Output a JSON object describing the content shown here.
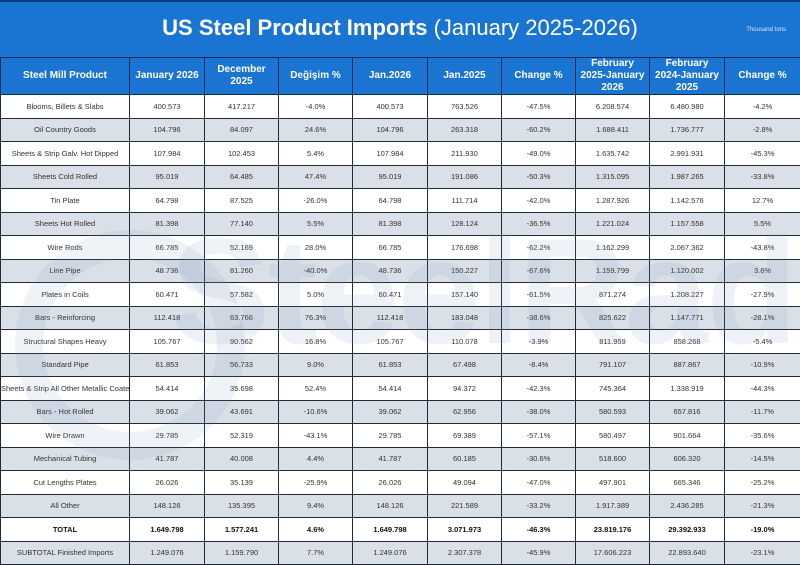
{
  "title": {
    "bold": "US Steel Product Imports",
    "rest": " (January 2025-2026)"
  },
  "unit": "Thousand tons",
  "watermark": "SteelRadar",
  "colors": {
    "header": "#1a74d2",
    "alt_row": "#d0d8e2"
  },
  "columns": [
    "Steel Mill Product",
    "January 2026",
    "December 2025",
    "Değişim %",
    "Jan.2026",
    "Jan.2025",
    "Change %",
    "February 2025-January 2026",
    "February 2024-January 2025",
    "Change %"
  ],
  "rows": [
    [
      "Blooms, Billets & Slabs",
      "400.573",
      "417.217",
      "-4.0%",
      "400.573",
      "763.526",
      "-47.5%",
      "6.208.574",
      "6.480.980",
      "-4.2%"
    ],
    [
      "Oil Country Goods",
      "104.796",
      "84.097",
      "24.6%",
      "104.796",
      "263.318",
      "-60.2%",
      "1.688.411",
      "1.736.777",
      "-2.8%"
    ],
    [
      "Sheets & Strip Galv. Hot Dipped",
      "107.984",
      "102.453",
      "5.4%",
      "107.984",
      "211.930",
      "-49.0%",
      "1.635.742",
      "2.991.931",
      "-45.3%"
    ],
    [
      "Sheets Cold Rolled",
      "95.019",
      "64.485",
      "47.4%",
      "95.019",
      "191.086",
      "-50.3%",
      "1.315.095",
      "1.987.265",
      "-33.8%"
    ],
    [
      "Tin Plate",
      "64.798",
      "87.525",
      "-26.0%",
      "64.798",
      "111.714",
      "-42.0%",
      "1.287.926",
      "1.142.576",
      "12.7%"
    ],
    [
      "Sheets Hot Rolled",
      "81.398",
      "77.140",
      "5.5%",
      "81.398",
      "128.124",
      "-36.5%",
      "1.221.024",
      "1.157.558",
      "5.5%"
    ],
    [
      "Wire Rods",
      "66.785",
      "52.169",
      "28.0%",
      "66.785",
      "176.698",
      "-62.2%",
      "1.162.299",
      "2.067.362",
      "-43.8%"
    ],
    [
      "Line Pipe",
      "48.736",
      "81.260",
      "-40.0%",
      "48.736",
      "150.227",
      "-67.6%",
      "1.159.799",
      "1.120.002",
      "3.6%"
    ],
    [
      "Plates in Coils",
      "60.471",
      "57.582",
      "5.0%",
      "60.471",
      "157.140",
      "-61.5%",
      "871.274",
      "1.208.227",
      "-27.9%"
    ],
    [
      "Bars - Reinforcing",
      "112.418",
      "63.766",
      "76.3%",
      "112.418",
      "183.048",
      "-38.6%",
      "825.622",
      "1.147.771",
      "-28.1%"
    ],
    [
      "Structural Shapes Heavy",
      "105.767",
      "90.562",
      "16.8%",
      "105.767",
      "110.078",
      "-3.9%",
      "811.959",
      "858.268",
      "-5.4%"
    ],
    [
      "Standard Pipe",
      "61.853",
      "56.733",
      "9.0%",
      "61.853",
      "67.498",
      "-8.4%",
      "791.107",
      "887.867",
      "-10.9%"
    ],
    [
      "Sheets & Strip All Other Metallic Coated",
      "54.414",
      "35.698",
      "52.4%",
      "54.414",
      "94.372",
      "-42.3%",
      "745.364",
      "1.338.919",
      "-44.3%"
    ],
    [
      "Bars - Hot Rolled",
      "39.062",
      "43.691",
      "-10.6%",
      "39.062",
      "62.956",
      "-38.0%",
      "580.593",
      "657.816",
      "-11.7%"
    ],
    [
      "Wire Drawn",
      "29.785",
      "52.319",
      "-43.1%",
      "29.785",
      "69.389",
      "-57.1%",
      "580.497",
      "901.664",
      "-35.6%"
    ],
    [
      "Mechanical Tubing",
      "41.787",
      "40.008",
      "4.4%",
      "41.787",
      "60.185",
      "-30.6%",
      "518.600",
      "606.320",
      "-14.5%"
    ],
    [
      "Cut Lengths Plates",
      "26.026",
      "35.139",
      "-25.9%",
      "26.026",
      "49.094",
      "-47.0%",
      "497.901",
      "665.346",
      "-25.2%"
    ],
    [
      "All Other",
      "148.126",
      "135.395",
      "9.4%",
      "148.126",
      "221.589",
      "-33.2%",
      "1.917.389",
      "2.436.285",
      "-21.3%"
    ],
    [
      "TOTAL",
      "1.649.798",
      "1.577.241",
      "4.6%",
      "1.649.798",
      "3.071.973",
      "-46.3%",
      "23.819.176",
      "29.392.933",
      "-19.0%"
    ],
    [
      "SUBTOTAL Finished Imports",
      "1.249.076",
      "1.159.790",
      "7.7%",
      "1.249.076",
      "2.307.378",
      "-45.9%",
      "17.606.223",
      "22.893.640",
      "-23.1%"
    ]
  ]
}
